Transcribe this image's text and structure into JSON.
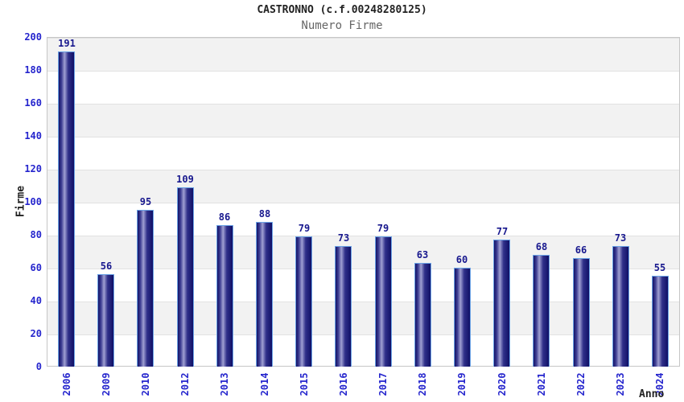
{
  "header": {
    "title": "CASTRONNO (c.f.00248280125)",
    "subtitle": "Numero Firme"
  },
  "chart_data": {
    "type": "bar",
    "title": "CASTRONNO (c.f.00248280125)",
    "subtitle": "Numero Firme",
    "xlabel": "Anno",
    "ylabel": "Firme",
    "categories": [
      "2006",
      "2009",
      "2010",
      "2012",
      "2013",
      "2014",
      "2015",
      "2016",
      "2017",
      "2018",
      "2019",
      "2020",
      "2021",
      "2022",
      "2023",
      "2024"
    ],
    "values": [
      191,
      56,
      95,
      109,
      86,
      88,
      79,
      73,
      79,
      63,
      60,
      77,
      68,
      66,
      73,
      55
    ],
    "ylim": [
      0,
      200
    ],
    "yticks": [
      0,
      20,
      40,
      60,
      80,
      100,
      120,
      140,
      160,
      180,
      200
    ],
    "grid": "horizontal-bands",
    "legend": "none",
    "colors": {
      "bar_dark": "#131368",
      "bar_highlight": "#a0a0d2",
      "bar_outline": "#6ba3e6",
      "tick_label": "#2525cd",
      "value_label": "#18188e",
      "axis_title": "#222222",
      "title": "#222222",
      "subtitle": "#666666",
      "band": "#f2f2f2",
      "gridline": "#e2e2e2",
      "plot_border": "#c6c6c6"
    }
  }
}
